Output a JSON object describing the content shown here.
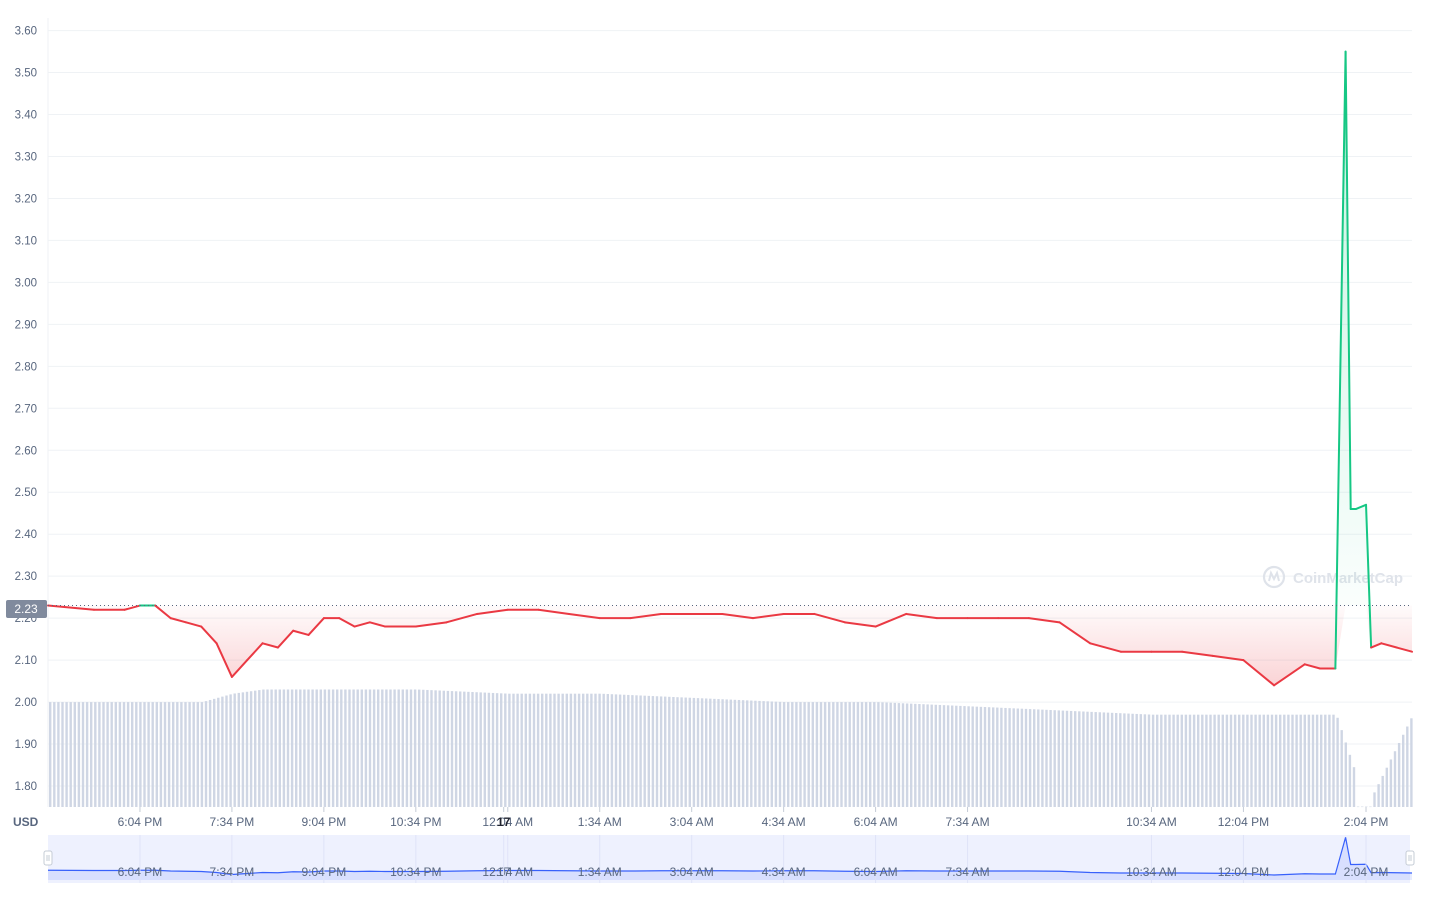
{
  "currency_label": "USD",
  "current_price_label": "2.23",
  "watermark": "CoinMarketCap",
  "colors": {
    "up": "#16c784",
    "down": "#ea3943",
    "grid": "#eff2f5",
    "axis_text": "#58667e",
    "volume": "#cfd6e4",
    "navigator_line": "#3861fb",
    "navigator_bg": "#eef1fe",
    "price_tag_bg": "#808a9d"
  },
  "chart_data": {
    "type": "line",
    "title": "",
    "xlabel": "",
    "ylabel": "USD",
    "ylim": [
      1.75,
      3.63
    ],
    "y_ticks": [
      "1.80",
      "1.90",
      "2.00",
      "2.10",
      "2.20",
      "2.30",
      "2.40",
      "2.50",
      "2.60",
      "2.70",
      "2.80",
      "2.90",
      "3.00",
      "3.10",
      "3.20",
      "3.30",
      "3.40",
      "3.50",
      "3.60"
    ],
    "x_ticks": [
      "6:04 PM",
      "7:34 PM",
      "9:04 PM",
      "10:34 PM",
      "12:04 AM",
      "1:34 AM",
      "3:04 AM",
      "4:34 AM",
      "6:04 AM",
      "7:34 AM",
      "17",
      "10:34 AM",
      "12:04 PM",
      "2:04 PM"
    ],
    "reference_price": 2.23,
    "grid": true,
    "series": [
      {
        "x": [
          "4:34 PM",
          "5:19 PM",
          "5:49 PM",
          "6:04 PM",
          "6:19 PM",
          "6:34 PM",
          "6:49 PM",
          "7:04 PM",
          "7:19 PM",
          "7:34 PM",
          "7:49 PM",
          "8:04 PM",
          "8:19 PM",
          "8:34 PM",
          "8:49 PM",
          "9:04 PM",
          "9:19 PM",
          "9:34 PM",
          "9:49 PM",
          "10:04 PM",
          "10:34 PM",
          "11:04 PM",
          "11:34 PM",
          "12:04 AM",
          "12:34 AM",
          "1:04 AM",
          "1:34 AM",
          "2:04 AM",
          "2:34 AM",
          "3:04 AM",
          "3:34 AM",
          "4:04 AM",
          "4:34 AM",
          "5:04 AM",
          "5:34 AM",
          "6:04 AM",
          "6:34 AM",
          "7:04 AM",
          "7:34 AM",
          "8:04 AM",
          "8:34 AM",
          "9:04 AM",
          "9:34 AM",
          "10:04 AM",
          "10:34 AM",
          "11:04 AM",
          "11:34 AM",
          "12:04 PM",
          "12:34 PM",
          "1:04 PM",
          "1:19 PM",
          "1:27 PM",
          "1:34 PM",
          "1:44 PM",
          "1:49 PM",
          "1:54 PM",
          "2:04 PM",
          "2:09 PM",
          "2:19 PM",
          "2:34 PM",
          "2:49 PM"
        ],
        "values": [
          2.23,
          2.22,
          2.22,
          2.23,
          2.23,
          2.2,
          2.19,
          2.18,
          2.14,
          2.06,
          2.1,
          2.14,
          2.13,
          2.17,
          2.16,
          2.2,
          2.2,
          2.18,
          2.19,
          2.18,
          2.18,
          2.19,
          2.21,
          2.22,
          2.22,
          2.21,
          2.2,
          2.2,
          2.21,
          2.21,
          2.21,
          2.2,
          2.21,
          2.21,
          2.19,
          2.18,
          2.21,
          2.2,
          2.2,
          2.2,
          2.2,
          2.19,
          2.14,
          2.12,
          2.12,
          2.12,
          2.11,
          2.1,
          2.04,
          2.09,
          2.08,
          2.08,
          2.08,
          3.55,
          2.46,
          2.46,
          2.47,
          2.13,
          2.14,
          2.13,
          2.12
        ]
      }
    ],
    "volume_series": {
      "x": [
        "4:34 PM",
        "6:04 PM",
        "7:04 PM",
        "7:34 PM",
        "8:04 PM",
        "9:04 PM",
        "10:34 PM",
        "12:04 AM",
        "1:34 AM",
        "3:04 AM",
        "4:34 AM",
        "6:04 AM",
        "7:34 AM",
        "9:04 AM",
        "10:34 AM",
        "12:04 PM",
        "1:34 PM",
        "2:04 PM",
        "2:49 PM"
      ],
      "values": [
        2.0,
        2.0,
        2.0,
        2.02,
        2.03,
        2.03,
        2.03,
        2.02,
        2.02,
        2.01,
        2.0,
        2.0,
        1.99,
        1.98,
        1.97,
        1.97,
        1.97,
        1.75,
        1.97
      ]
    },
    "navigator_ticks": [
      "6:04 PM",
      "7:34 PM",
      "9:04 PM",
      "10:34 PM",
      "12:04 AM",
      "1:34 AM",
      "3:04 AM",
      "4:34 AM",
      "6:04 AM",
      "7:34 AM",
      "17",
      "10:34 AM",
      "12:04 PM",
      "2:04 PM"
    ]
  }
}
